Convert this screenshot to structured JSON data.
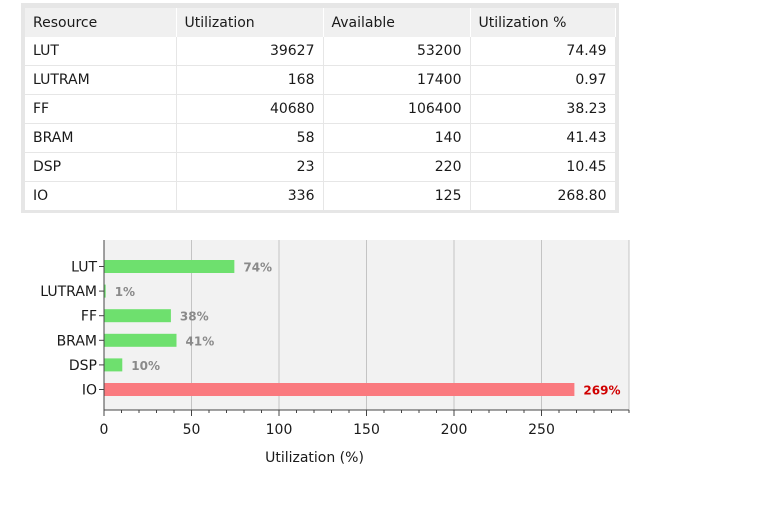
{
  "table": {
    "headers": [
      "Resource",
      "Utilization",
      "Available",
      "Utilization %"
    ],
    "rows": [
      [
        "LUT",
        "39627",
        "53200",
        "74.49"
      ],
      [
        "LUTRAM",
        "168",
        "17400",
        "0.97"
      ],
      [
        "FF",
        "40680",
        "106400",
        "38.23"
      ],
      [
        "BRAM",
        "58",
        "140",
        "41.43"
      ],
      [
        "DSP",
        "23",
        "220",
        "10.45"
      ],
      [
        "IO",
        "336",
        "125",
        "268.80"
      ]
    ]
  },
  "chart_data": {
    "type": "bar",
    "orientation": "horizontal",
    "categories": [
      "LUT",
      "LUTRAM",
      "FF",
      "BRAM",
      "DSP",
      "IO"
    ],
    "values": [
      74.49,
      0.97,
      38.23,
      41.43,
      10.45,
      268.8
    ],
    "value_labels": [
      "74%",
      "1%",
      "38%",
      "41%",
      "10%",
      "269%"
    ],
    "xlabel": "Utilization (%)",
    "ylabel": "",
    "xlim": [
      0,
      300
    ],
    "xticks": [
      0,
      50,
      100,
      150,
      200,
      250
    ],
    "grid": true,
    "colors": {
      "normal_bar": "#6ee06e",
      "over_bar": "#fa7a7f",
      "normal_label": "#8a8a8a",
      "over_label": "#d00000",
      "plot_bg": "#f2f2f2",
      "grid": "#c4c4c4"
    }
  }
}
